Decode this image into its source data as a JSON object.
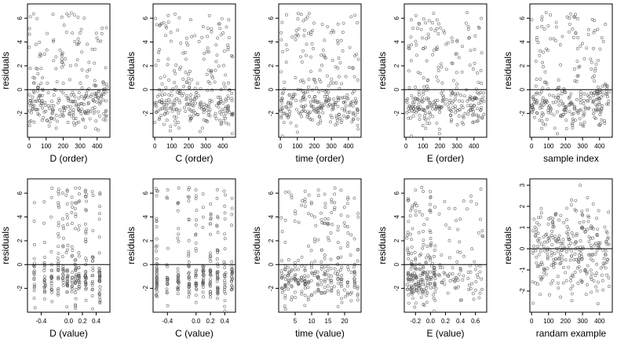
{
  "figure": {
    "description_hidden": ""
  },
  "chart_data": [
    {
      "type": "scatter",
      "xlabel": "D (order)",
      "ylabel": "residuals",
      "xlim": [
        -10,
        475
      ],
      "ylim": [
        -4,
        7.2
      ],
      "xticks": [
        0,
        100,
        200,
        300,
        400
      ],
      "xtick_labels": [
        "0",
        "100",
        "200",
        "300",
        "400"
      ],
      "yticks": [
        -2,
        0,
        2,
        4,
        6
      ],
      "ytick_labels": [
        "-2",
        "0",
        "2",
        "4",
        "6"
      ],
      "hline": 0,
      "seed": 11,
      "n": 300,
      "pattern": "order-cluster"
    },
    {
      "type": "scatter",
      "xlabel": "C (order)",
      "ylabel": "residuals",
      "xlim": [
        -10,
        475
      ],
      "ylim": [
        -4,
        7.2
      ],
      "xticks": [
        0,
        100,
        200,
        300,
        400
      ],
      "xtick_labels": [
        "0",
        "100",
        "200",
        "300",
        "400"
      ],
      "yticks": [
        -2,
        0,
        2,
        4,
        6
      ],
      "ytick_labels": [
        "-2",
        "0",
        "2",
        "4",
        "6"
      ],
      "hline": 0,
      "seed": 23,
      "n": 300,
      "pattern": "uniform"
    },
    {
      "type": "scatter",
      "xlabel": "time (order)",
      "ylabel": "residuals",
      "xlim": [
        -10,
        475
      ],
      "ylim": [
        -4,
        7.2
      ],
      "xticks": [
        0,
        100,
        200,
        300,
        400
      ],
      "xtick_labels": [
        "0",
        "100",
        "200",
        "300",
        "400"
      ],
      "yticks": [
        -2,
        0,
        2,
        4,
        6
      ],
      "ytick_labels": [
        "-2",
        "0",
        "2",
        "4",
        "6"
      ],
      "hline": 0,
      "seed": 37,
      "n": 300,
      "pattern": "uniform"
    },
    {
      "type": "scatter",
      "xlabel": "E (order)",
      "ylabel": "residuals",
      "xlim": [
        -10,
        475
      ],
      "ylim": [
        -4,
        7.2
      ],
      "xticks": [
        0,
        100,
        200,
        300,
        400
      ],
      "xtick_labels": [
        "0",
        "100",
        "200",
        "300",
        "400"
      ],
      "yticks": [
        -2,
        0,
        2,
        4,
        6
      ],
      "ytick_labels": [
        "-2",
        "0",
        "2",
        "4",
        "6"
      ],
      "hline": 0,
      "seed": 41,
      "n": 300,
      "pattern": "uniform"
    },
    {
      "type": "scatter",
      "xlabel": "sample index",
      "ylabel": "residuals",
      "xlim": [
        -10,
        475
      ],
      "ylim": [
        -4,
        7.2
      ],
      "xticks": [
        0,
        100,
        200,
        300,
        400
      ],
      "xtick_labels": [
        "0",
        "100",
        "200",
        "300",
        "400"
      ],
      "yticks": [
        -2,
        0,
        2,
        4,
        6
      ],
      "ytick_labels": [
        "-2",
        "0",
        "2",
        "4",
        "6"
      ],
      "hline": 0,
      "seed": 53,
      "n": 300,
      "pattern": "order-cluster"
    },
    {
      "type": "scatter",
      "xlabel": "D (value)",
      "ylabel": "residuals",
      "xlim": [
        -0.6,
        0.6
      ],
      "ylim": [
        -4,
        7.2
      ],
      "xticks": [
        -0.4,
        0,
        0.2,
        0.4
      ],
      "xtick_labels": [
        "-0.4",
        "0.0",
        "0.2",
        "0.4"
      ],
      "yticks": [
        -2,
        0,
        2,
        4,
        6
      ],
      "ytick_labels": [
        "-2",
        "0",
        "2",
        "4",
        "6"
      ],
      "hline": 0,
      "seed": 61,
      "n": 300,
      "pattern": "value-columns",
      "x_levels": [
        -0.5,
        -0.35,
        -0.25,
        -0.15,
        -0.08,
        -0.02,
        0.05,
        0.1,
        0.15,
        0.25,
        0.35,
        0.45
      ]
    },
    {
      "type": "scatter",
      "xlabel": "C (value)",
      "ylabel": "residuals",
      "xlim": [
        -0.6,
        0.55
      ],
      "ylim": [
        -4,
        7.2
      ],
      "xticks": [
        -0.4,
        0,
        0.2,
        0.4
      ],
      "xtick_labels": [
        "-0.4",
        "0.0",
        "0.2",
        "0.4"
      ],
      "yticks": [
        -2,
        0,
        2,
        4,
        6
      ],
      "ytick_labels": [
        "-2",
        "0",
        "2",
        "4",
        "6"
      ],
      "hline": 0,
      "seed": 71,
      "n": 300,
      "pattern": "value-columns",
      "x_levels": [
        -0.55,
        -0.4,
        -0.25,
        -0.1,
        0.0,
        0.1,
        0.2,
        0.3,
        0.4,
        0.5
      ]
    },
    {
      "type": "scatter",
      "xlabel": "time (value)",
      "ylabel": "residuals",
      "xlim": [
        0,
        25
      ],
      "ylim": [
        -4,
        7.2
      ],
      "xticks": [
        5,
        10,
        15,
        20
      ],
      "xtick_labels": [
        "5",
        "10",
        "15",
        "20"
      ],
      "yticks": [
        -2,
        0,
        2,
        4,
        6
      ],
      "ytick_labels": [
        "-2",
        "0",
        "2",
        "4",
        "6"
      ],
      "hline": 0,
      "seed": 83,
      "n": 300,
      "pattern": "value-columns",
      "x_levels": [
        1,
        2,
        3,
        4,
        5,
        6,
        7,
        8,
        9,
        10,
        11,
        12,
        13,
        14,
        15,
        16,
        17,
        18,
        19,
        20,
        21,
        22,
        23,
        24
      ]
    },
    {
      "type": "scatter",
      "xlabel": "E (value)",
      "ylabel": "residuals",
      "xlim": [
        -0.35,
        0.75
      ],
      "ylim": [
        -4,
        7.2
      ],
      "xticks": [
        -0.2,
        0,
        0.2,
        0.4,
        0.6
      ],
      "xtick_labels": [
        "-0.2",
        "0.0",
        "0.2",
        "0.4",
        "0.6"
      ],
      "yticks": [
        -2,
        0,
        2,
        4,
        6
      ],
      "ytick_labels": [
        "-2",
        "0",
        "2",
        "4",
        "6"
      ],
      "hline": 0,
      "seed": 97,
      "n": 300,
      "pattern": "e-value",
      "x_levels": [
        -0.3,
        -0.25,
        -0.2,
        -0.15,
        -0.1,
        -0.05,
        0.0,
        0.05
      ]
    },
    {
      "type": "scatter",
      "xlabel": "randam example",
      "ylabel": "residuals",
      "xlim": [
        -10,
        475
      ],
      "ylim": [
        -3,
        3.3
      ],
      "xticks": [
        0,
        100,
        200,
        300,
        400
      ],
      "xtick_labels": [
        "0",
        "100",
        "200",
        "300",
        "400"
      ],
      "yticks": [
        -2,
        -1,
        0,
        1,
        2,
        3
      ],
      "ytick_labels": [
        "-2",
        "-1",
        "0",
        "1",
        "2",
        "3"
      ],
      "hline": 0,
      "seed": 101,
      "n": 300,
      "pattern": "normal"
    }
  ]
}
